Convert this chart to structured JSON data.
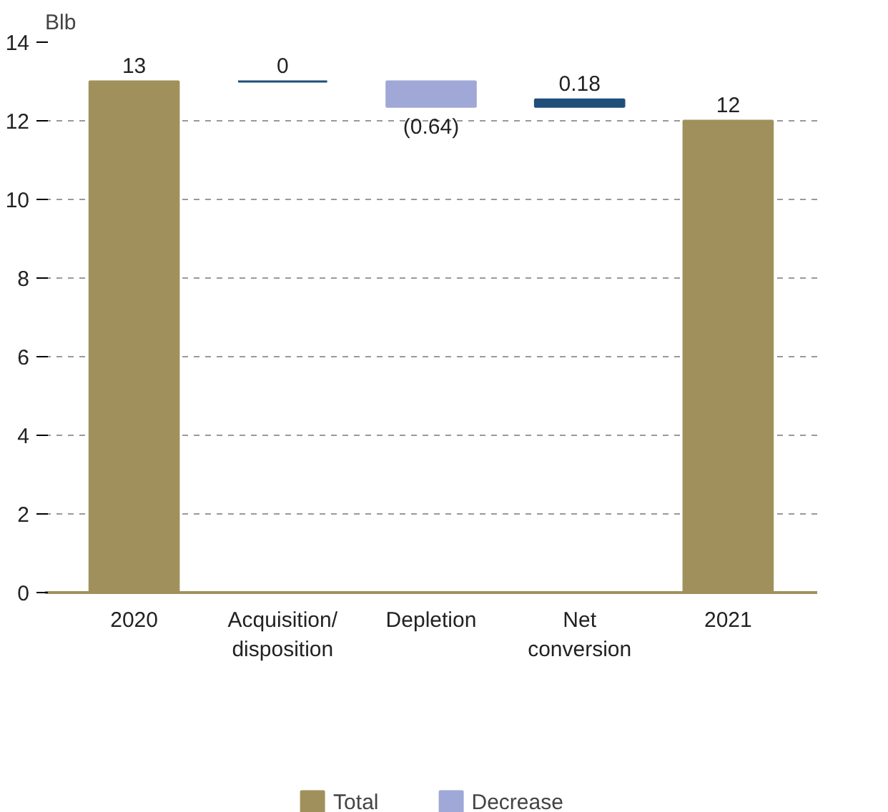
{
  "chart_data": {
    "type": "bar",
    "ylabel": "Blb",
    "categories": [
      "2020",
      "Acquisition/\ndisposition",
      "Depletion",
      "Net\nconversion",
      "2021"
    ],
    "series": [
      {
        "name": "Total",
        "color": "#a0915c",
        "values": [
          13,
          null,
          null,
          null,
          12
        ]
      },
      {
        "color": "#1f4e79",
        "values": [
          null,
          0,
          null,
          0.18,
          null
        ],
        "base": [
          null,
          13,
          null,
          12.36,
          null
        ]
      },
      {
        "name": "Decrease",
        "color": "#9fa8d6",
        "values": [
          null,
          null,
          -0.64,
          null,
          null
        ],
        "base": [
          null,
          null,
          13,
          null,
          null
        ]
      }
    ],
    "value_labels": [
      "13",
      "0",
      "(0.64)",
      "0.18",
      "12"
    ],
    "ylim": [
      0,
      14
    ],
    "yticks": [
      0,
      2,
      4,
      6,
      8,
      10,
      12,
      14
    ],
    "grid": "y",
    "legend": "bottom"
  }
}
